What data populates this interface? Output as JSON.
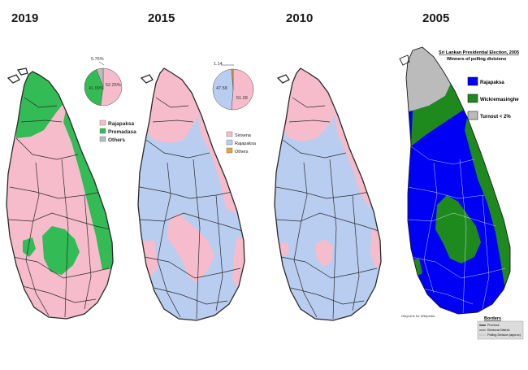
{
  "colors": {
    "pink": "#f7bccb",
    "green": "#33bb55",
    "blue": "#b9cdf0",
    "gray": "#bbbbbb",
    "orange": "#f0a030",
    "dark_blue": "#0000f5",
    "dark_green": "#1e8a1e",
    "line": "#2a2a2a"
  },
  "panels": [
    {
      "year": "2019",
      "legend": [
        {
          "label": "Rajapaksa",
          "color": "pink"
        },
        {
          "label": "Premadasa",
          "color": "green"
        },
        {
          "label": "Others",
          "color": "gray"
        }
      ],
      "pie": {
        "slices": [
          {
            "label": "52.25%",
            "value": 52.25,
            "color": "pink"
          },
          {
            "label": "41.99%",
            "value": 41.99,
            "color": "green"
          },
          {
            "label": "5.76%",
            "value": 5.76,
            "color": "gray"
          }
        ]
      }
    },
    {
      "year": "2015",
      "legend": [
        {
          "label": "Sirisena",
          "color": "pink"
        },
        {
          "label": "Rajapaksa",
          "color": "blue"
        },
        {
          "label": "Others",
          "color": "orange"
        }
      ],
      "pie": {
        "slices": [
          {
            "label": "51.28",
            "value": 51.28,
            "color": "pink"
          },
          {
            "label": "47.58",
            "value": 47.58,
            "color": "blue"
          },
          {
            "label": "1.14",
            "value": 1.14,
            "color": "orange"
          }
        ]
      }
    },
    {
      "year": "2010"
    },
    {
      "year": "2005",
      "title": "Sri Lankan Presidential Election, 2005",
      "subtitle": "Winners of polling divisions",
      "legend": [
        {
          "label": "Rajapaksa",
          "color": "dark_blue"
        },
        {
          "label": "Wickremasinghe",
          "color": "dark_green"
        },
        {
          "label": "Turnout < 2%",
          "color": "gray"
        }
      ],
      "borders_title": "Borders",
      "borders_items": [
        "Province",
        "Electoral District",
        "Polling Division (approx)"
      ],
      "credit": "Oleyuzhe for Wikipedia"
    }
  ]
}
